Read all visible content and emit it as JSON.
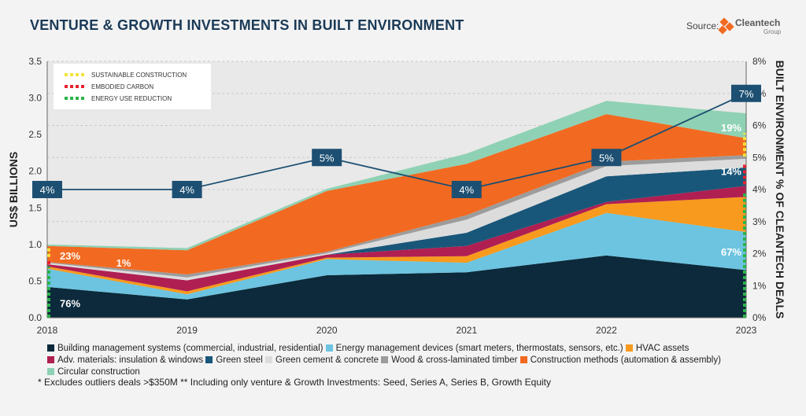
{
  "header": {
    "title": "VENTURE & GROWTH INVESTMENTS IN BUILT ENVIRONMENT",
    "source_label": "Source:",
    "logo_text": "Cleantech",
    "logo_sub": "Group"
  },
  "inset_legend": [
    {
      "label": "SUSTAINABLE CONSTRUCTION",
      "color": "#f5e23a"
    },
    {
      "label": "EMBODIED CARBON",
      "color": "#e8222f"
    },
    {
      "label": "ENERGY USE REDUCTION",
      "color": "#2bb34a"
    }
  ],
  "chart_data": {
    "type": "area",
    "stacked": true,
    "categories": [
      "2018",
      "2019",
      "2020",
      "2021",
      "2022",
      "2023"
    ],
    "ylabel": "US$ BILLIONS",
    "y2label": "BUILT ENVIRONMENT % OF CLEANTECH DEALS",
    "ylim": [
      0,
      3.5
    ],
    "yticks": [
      "0.0",
      "0.5",
      "1.0",
      "1.5",
      "2.0",
      "2.5",
      "3.0",
      "3.5"
    ],
    "y2lim": [
      0,
      8
    ],
    "y2ticks": [
      "0%",
      "1%",
      "2%",
      "3%",
      "4%",
      "5%",
      "6%",
      "7%",
      "8%"
    ],
    "grid": true,
    "series": [
      {
        "name": "Building management systems (commercial, industrial, residential)",
        "color": "#0c2a3b",
        "values": [
          0.42,
          0.25,
          0.58,
          0.62,
          0.85,
          0.65
        ]
      },
      {
        "name": "Energy management devices (smart meters, thermostats, sensors, etc.)",
        "color": "#6cc4e0",
        "values": [
          0.25,
          0.07,
          0.22,
          0.13,
          0.58,
          0.52
        ]
      },
      {
        "name": "HVAC assets",
        "color": "#f79a1e",
        "values": [
          0.03,
          0.04,
          0.02,
          0.09,
          0.12,
          0.48
        ]
      },
      {
        "name": "Adv. materials: insulation & windows",
        "color": "#b01f52",
        "values": [
          0.03,
          0.15,
          0.04,
          0.14,
          0.03,
          0.15
        ]
      },
      {
        "name": "Green steel",
        "color": "#19577a",
        "values": [
          0.0,
          0.0,
          0.0,
          0.18,
          0.35,
          0.25
        ]
      },
      {
        "name": "Green cement & concrete",
        "color": "#dcdcdc",
        "values": [
          0.02,
          0.04,
          0.02,
          0.18,
          0.14,
          0.12
        ]
      },
      {
        "name": "Wood & cross-laminated timber",
        "color": "#9c9c9c",
        "values": [
          0.01,
          0.04,
          0.02,
          0.06,
          0.06,
          0.05
        ]
      },
      {
        "name": "Construction methods (automation & assembly)",
        "color": "#f26a21",
        "values": [
          0.22,
          0.33,
          0.83,
          0.7,
          0.65,
          0.23
        ]
      },
      {
        "name": "Circular construction",
        "color": "#8fd1b4",
        "values": [
          0.02,
          0.03,
          0.03,
          0.14,
          0.18,
          0.34
        ]
      }
    ],
    "line": {
      "color": "#1d4f72",
      "values_pct": [
        4,
        4,
        5,
        4,
        5,
        7
      ],
      "labels": [
        "4%",
        "4%",
        "5%",
        "4%",
        "5%",
        "7%"
      ]
    },
    "annotations": [
      {
        "text": "76%",
        "x": "2018",
        "y": 0.2
      },
      {
        "text": "23%",
        "x": "2018",
        "y": 0.85
      },
      {
        "text": "1%",
        "x": "2019",
        "y": 0.75
      },
      {
        "text": "67%",
        "x": "2023",
        "y": 0.9
      },
      {
        "text": "14%",
        "x": "2023",
        "y": 2.0
      },
      {
        "text": "19%",
        "x": "2023",
        "y": 2.6
      }
    ]
  },
  "footnote": "* Excludes outliers deals >$350M  ** Including only venture & Growth Investments: Seed, Series A, Series B, Growth Equity"
}
